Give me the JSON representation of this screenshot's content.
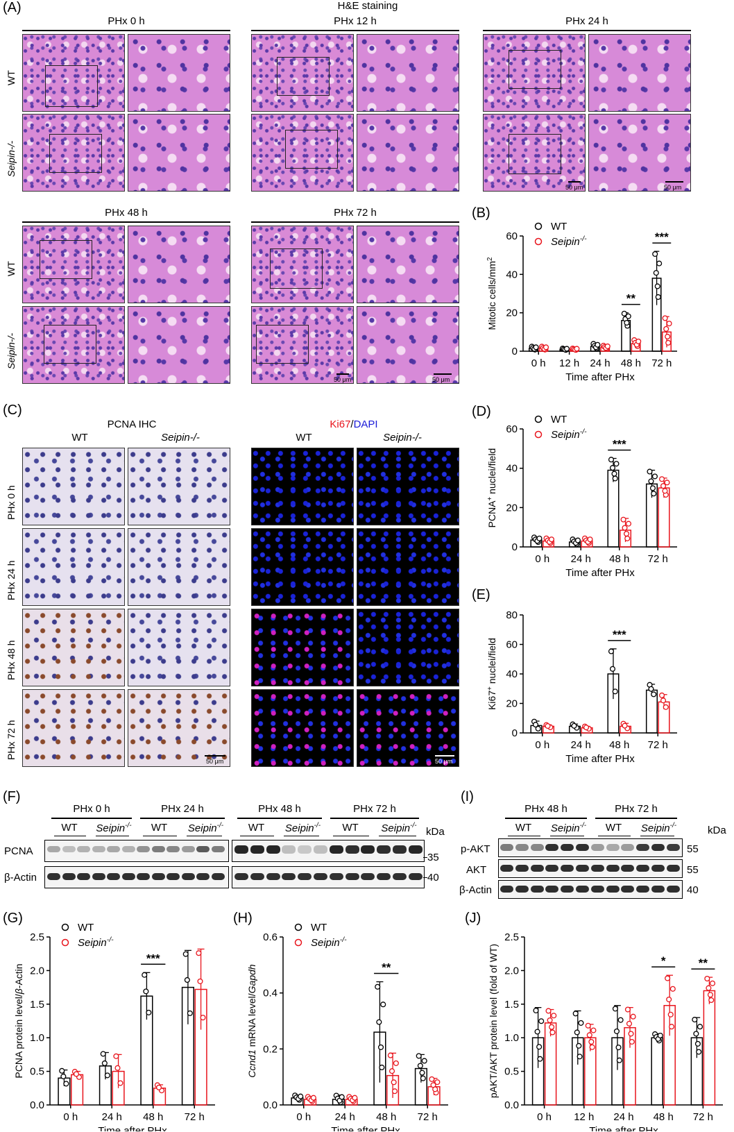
{
  "panels": {
    "A": {
      "label": "(A)",
      "title": "H&E staining",
      "top_titles": [
        "PHx 0 h",
        "PHx 12 h",
        "PHx 24 h"
      ],
      "bottom_titles": [
        "PHx 48 h",
        "PHx 72 h"
      ],
      "row_wt": "WT",
      "row_ko": "Seipin-/-",
      "scale_bar": "50 μm"
    },
    "B": {
      "label": "(B)"
    },
    "C": {
      "label": "(C)",
      "ihc_title": "PCNA IHC",
      "if_title_red": "Ki67",
      "if_title_sep": "/",
      "if_title_blue": "DAPI",
      "col_wt": "WT",
      "col_ko": "Seipin-/-",
      "rows": [
        "PHx 0 h",
        "PHx 24 h",
        "PHx 48 h",
        "PHx 72 h"
      ],
      "scale_bar": "50 μm"
    },
    "D": {
      "label": "(D)"
    },
    "E": {
      "label": "(E)"
    },
    "F": {
      "label": "(F)",
      "groups": [
        "PHx 0 h",
        "PHx 24 h",
        "PHx 48 h",
        "PHx 72 h"
      ],
      "wt": "WT",
      "ko": "Seipin-/-",
      "kda": "kDa",
      "rows": [
        "PCNA",
        "β-Actin"
      ],
      "markers": [
        "35",
        "40"
      ]
    },
    "G": {
      "label": "(G)"
    },
    "H": {
      "label": "(H)"
    },
    "I": {
      "label": "(I)",
      "groups": [
        "PHx 48 h",
        "PHx 72 h"
      ],
      "wt": "WT",
      "ko": "Seipin-/-",
      "kda": "kDa",
      "rows": [
        "p-AKT",
        "AKT",
        "β-Actin"
      ],
      "markers": [
        "55",
        "55",
        "40"
      ]
    },
    "J": {
      "label": "(J)"
    }
  },
  "colors": {
    "wt": "#000000",
    "ko": "#e8141c",
    "ki67": "#e8141c",
    "dapi": "#1a1ad8"
  },
  "chart_data": [
    {
      "id": "B",
      "type": "bar",
      "categories": [
        "0 h",
        "12 h",
        "24 h",
        "48 h",
        "72 h"
      ],
      "xlabel": "Time after PHx",
      "ylabel": "Mitotic cells/mm2",
      "ylim": [
        0,
        60
      ],
      "yticks": [
        0,
        20,
        40,
        60
      ],
      "series": [
        {
          "name": "WT",
          "values": [
            1.5,
            1.0,
            2.5,
            16,
            38
          ],
          "err": [
            1,
            0.5,
            1.5,
            4,
            14
          ]
        },
        {
          "name": "Seipin-/-",
          "values": [
            1.5,
            1.0,
            2.0,
            4,
            10
          ],
          "err": [
            1,
            0.5,
            1,
            2,
            8
          ]
        }
      ],
      "significance": [
        {
          "cat": 3,
          "text": "**"
        },
        {
          "cat": 4,
          "text": "***"
        }
      ]
    },
    {
      "id": "D",
      "type": "bar",
      "categories": [
        "0 h",
        "24 h",
        "48 h",
        "72 h"
      ],
      "xlabel": "Time after PHx",
      "ylabel": "PCNA+ nuclei/field",
      "ylim": [
        0,
        60
      ],
      "yticks": [
        0,
        20,
        40,
        60
      ],
      "series": [
        {
          "name": "WT",
          "values": [
            3.5,
            2.5,
            39,
            32
          ],
          "err": [
            1.5,
            1.5,
            6,
            7
          ]
        },
        {
          "name": "Seipin-/-",
          "values": [
            3,
            3,
            8.5,
            30
          ],
          "err": [
            1.5,
            1.5,
            6,
            5
          ]
        }
      ],
      "significance": [
        {
          "cat": 2,
          "text": "***"
        }
      ]
    },
    {
      "id": "E",
      "type": "bar",
      "categories": [
        "0 h",
        "24 h",
        "48 h",
        "72 h"
      ],
      "xlabel": "Time after PHx",
      "ylabel": "Ki67+ nuclei/field",
      "ylim": [
        0,
        80
      ],
      "yticks": [
        0,
        20,
        40,
        60,
        80
      ],
      "series": [
        {
          "name": "WT",
          "values": [
            5,
            4.5,
            40,
            29
          ],
          "err": [
            3,
            1.5,
            17,
            4
          ]
        },
        {
          "name": "Seipin-/-",
          "values": [
            4.5,
            3.5,
            4.5,
            21
          ],
          "err": [
            1,
            1,
            2,
            5
          ]
        }
      ],
      "significance": [
        {
          "cat": 2,
          "text": "***"
        }
      ]
    },
    {
      "id": "G",
      "type": "bar",
      "categories": [
        "0 h",
        "24 h",
        "48 h",
        "72 h"
      ],
      "xlabel": "Time after PHx",
      "ylabel": "PCNA protein level/β-Actin",
      "ylim": [
        0,
        2.5
      ],
      "yticks": [
        0.0,
        0.5,
        1.0,
        1.5,
        2.0,
        2.5
      ],
      "series": [
        {
          "name": "WT",
          "values": [
            0.4,
            0.58,
            1.62,
            1.75
          ],
          "err": [
            0.12,
            0.2,
            0.35,
            0.55
          ]
        },
        {
          "name": "Seipin-/-",
          "values": [
            0.45,
            0.5,
            0.25,
            1.72
          ],
          "err": [
            0.05,
            0.25,
            0.05,
            0.6
          ]
        }
      ],
      "significance": [
        {
          "cat": 2,
          "text": "***"
        }
      ]
    },
    {
      "id": "H",
      "type": "bar",
      "categories": [
        "0 h",
        "24 h",
        "48 h",
        "72 h"
      ],
      "xlabel": "Time after PHx",
      "ylabel": "Ccnd1 mRNA level/Gapdh",
      "ylim": [
        0,
        0.6
      ],
      "yticks": [
        0.0,
        0.2,
        0.4,
        0.6
      ],
      "series": [
        {
          "name": "WT",
          "values": [
            0.025,
            0.02,
            0.26,
            0.13
          ],
          "err": [
            0.01,
            0.015,
            0.18,
            0.05
          ]
        },
        {
          "name": "Seipin-/-",
          "values": [
            0.02,
            0.02,
            0.105,
            0.065
          ],
          "err": [
            0.01,
            0.01,
            0.08,
            0.03
          ]
        }
      ],
      "significance": [
        {
          "cat": 2,
          "text": "**"
        }
      ]
    },
    {
      "id": "J",
      "type": "bar",
      "categories": [
        "0 h",
        "12 h",
        "24 h",
        "48 h",
        "72 h"
      ],
      "xlabel": "Time after PHx",
      "ylabel": "pAKT/AKT protein level (fold of WT)",
      "ylim": [
        0,
        2.5
      ],
      "yticks": [
        0.0,
        0.5,
        1.0,
        1.5,
        2.0,
        2.5
      ],
      "series": [
        {
          "name": "WT",
          "values": [
            1.0,
            1.0,
            1.0,
            1.0,
            1.0
          ],
          "err": [
            0.45,
            0.4,
            0.48,
            0.06,
            0.3
          ]
        },
        {
          "name": "Seipin-/-",
          "values": [
            1.22,
            1.0,
            1.15,
            1.48,
            1.7
          ],
          "err": [
            0.2,
            0.2,
            0.3,
            0.45,
            0.2
          ]
        }
      ],
      "significance": [
        {
          "cat": 3,
          "text": "*"
        },
        {
          "cat": 4,
          "text": "**"
        }
      ]
    }
  ]
}
